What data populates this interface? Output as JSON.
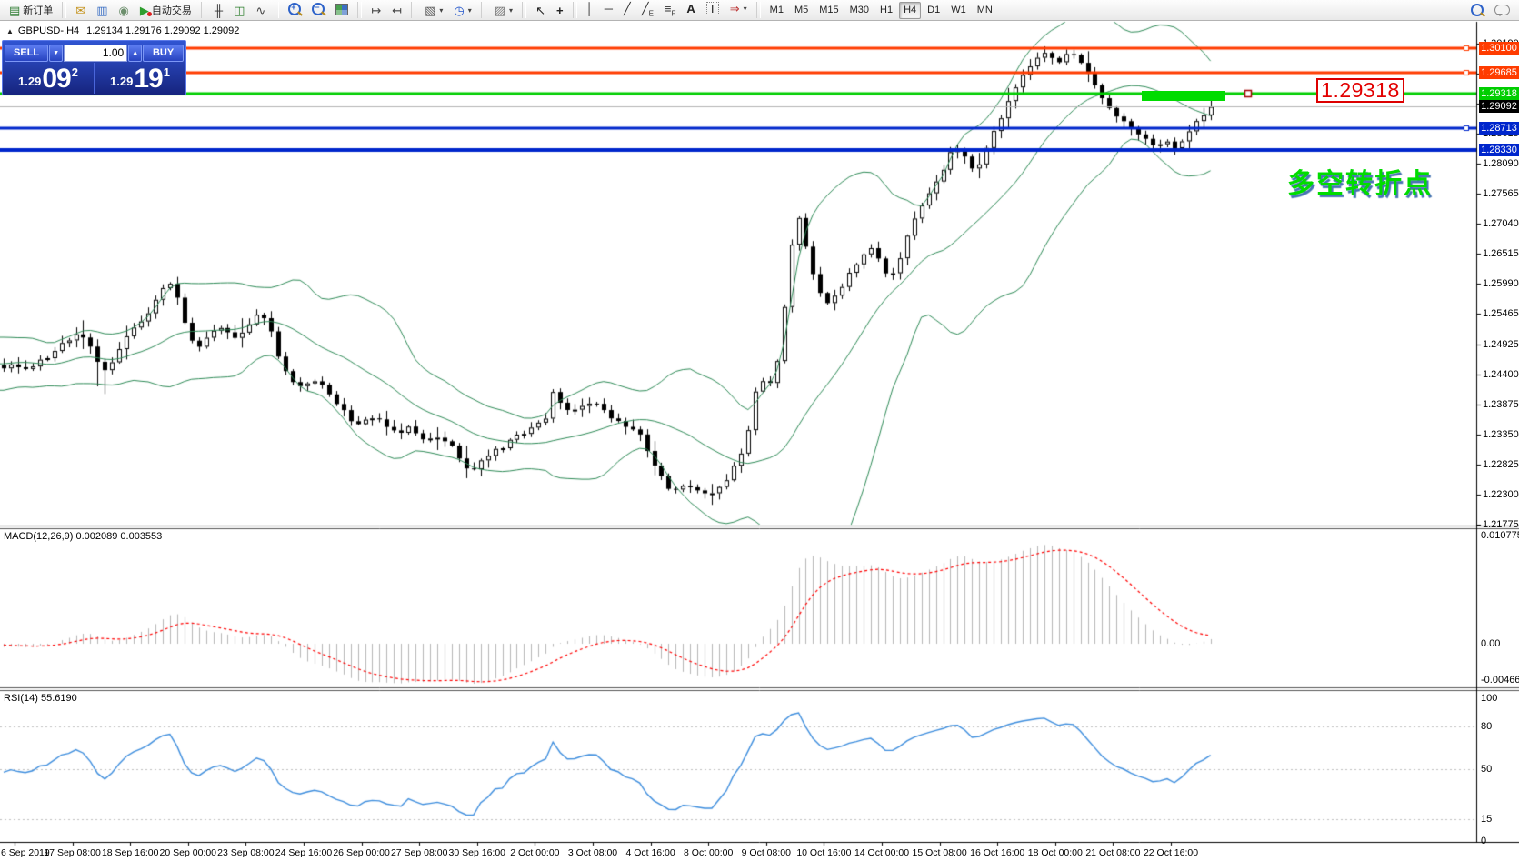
{
  "toolbar": {
    "groups": [
      {
        "name": "orders",
        "items": [
          {
            "icon": "new-order",
            "glyph": "▤",
            "label": "新订单"
          }
        ]
      },
      {
        "name": "services",
        "items": [
          {
            "icon": "envelope",
            "glyph": "✉"
          },
          {
            "icon": "terminal",
            "glyph": "▥"
          },
          {
            "icon": "signal",
            "glyph": "◉"
          },
          {
            "icon": "autotrading",
            "glyph": "▶",
            "label": "自动交易"
          }
        ]
      },
      {
        "name": "chart-type",
        "items": [
          {
            "icon": "bars",
            "glyph": "╫"
          },
          {
            "icon": "candles",
            "glyph": "◫"
          },
          {
            "icon": "line",
            "glyph": "∿"
          }
        ]
      },
      {
        "name": "zoom",
        "items": [
          {
            "icon": "zoom-in",
            "mag": "+"
          },
          {
            "icon": "zoom-out",
            "mag": "−"
          },
          {
            "icon": "tile-windows",
            "shape": true
          }
        ]
      },
      {
        "name": "scroll",
        "items": [
          {
            "icon": "auto-scroll",
            "glyph": "↦"
          },
          {
            "icon": "chart-shift",
            "glyph": "↤"
          }
        ]
      },
      {
        "name": "new-objects",
        "items": [
          {
            "icon": "new-chart",
            "glyph": "▧",
            "caret": true
          },
          {
            "icon": "periods",
            "glyph": "◷",
            "caret": true
          }
        ]
      },
      {
        "name": "templates",
        "items": [
          {
            "icon": "templates",
            "glyph": "▨",
            "caret": true
          }
        ]
      },
      {
        "name": "pointer",
        "items": [
          {
            "icon": "cursor",
            "glyph": "↖"
          },
          {
            "icon": "crosshair",
            "glyph": "+"
          }
        ]
      },
      {
        "name": "drawing",
        "items": [
          {
            "icon": "vline",
            "glyph": "│"
          },
          {
            "icon": "hline",
            "glyph": "─"
          },
          {
            "icon": "trendline",
            "glyph": "╱"
          },
          {
            "icon": "channel",
            "glyph": "╱",
            "sub": "E"
          },
          {
            "icon": "fibonacci",
            "glyph": "≡",
            "sub": "F"
          },
          {
            "icon": "text",
            "glyph": "A"
          },
          {
            "icon": "text-label",
            "glyph": "T"
          },
          {
            "icon": "arrows",
            "glyph": "⇒",
            "caret": true
          }
        ]
      },
      {
        "name": "timeframes",
        "items": [
          {
            "tf": "M1"
          },
          {
            "tf": "M5"
          },
          {
            "tf": "M15"
          },
          {
            "tf": "M30"
          },
          {
            "tf": "H1"
          },
          {
            "tf": "H4",
            "active": true
          },
          {
            "tf": "D1"
          },
          {
            "tf": "W1"
          },
          {
            "tf": "MN"
          }
        ]
      },
      {
        "name": "right",
        "align": "right",
        "items": [
          {
            "icon": "search",
            "mag": ""
          },
          {
            "icon": "chat",
            "chat": true
          }
        ]
      }
    ]
  },
  "chart_header": {
    "collapse": "▲",
    "symbol_period": "GBPUSD-,H4",
    "ohlc": "1.29134 1.29176 1.29092 1.29092"
  },
  "order_panel": {
    "sell_label": "SELL",
    "buy_label": "BUY",
    "volume": "1.00",
    "spin_down": "▼",
    "spin_up": "▲",
    "sell_price": {
      "prefix": "1.29",
      "big": "09",
      "sup": "2"
    },
    "buy_price": {
      "prefix": "1.29",
      "big": "19",
      "sup": "1"
    }
  },
  "annotations": {
    "price_box_label": "1.29318",
    "turning_point_text": "多空转折点",
    "accent_red": "#e20000",
    "accent_green": "#00dc00"
  },
  "chart_data": [
    {
      "type": "candlestick",
      "title": "GBPUSD-,H4",
      "ylim": [
        1.21775,
        1.30315
      ],
      "y_axis_ticks": [
        "1.30190",
        "1.29665",
        "1.29140",
        "1.28615",
        "1.28090",
        "1.27565",
        "1.27040",
        "1.26515",
        "1.25990",
        "1.25465",
        "1.24925",
        "1.24400",
        "1.23875",
        "1.23350",
        "1.22825",
        "1.22300",
        "1.21775"
      ],
      "x_axis_labels": [
        "6 Sep 2019",
        "17 Sep 08:00",
        "18 Sep 16:00",
        "20 Sep 00:00",
        "23 Sep 08:00",
        "24 Sep 16:00",
        "26 Sep 00:00",
        "27 Sep 08:00",
        "30 Sep 16:00",
        "2 Oct 00:00",
        "3 Oct 08:00",
        "4 Oct 16:00",
        "8 Oct 00:00",
        "9 Oct 08:00",
        "10 Oct 16:00",
        "14 Oct 00:00",
        "15 Oct 08:00",
        "16 Oct 16:00",
        "18 Oct 00:00",
        "21 Oct 08:00",
        "22 Oct 16:00"
      ],
      "levels": [
        {
          "price": 1.301,
          "label": "1.30100",
          "color": "#ff3c00",
          "width": 3,
          "handle": true
        },
        {
          "price": 1.29685,
          "label": "1.29685",
          "color": "#ff3c00",
          "width": 3,
          "handle": true
        },
        {
          "price": 1.29318,
          "label": "1.29318",
          "color": "#00ce00",
          "width": 3,
          "handle": false
        },
        {
          "price": 1.29092,
          "label": "1.29092",
          "color": "#b4b4b4",
          "width": 1,
          "badge": "#000000",
          "handle": false
        },
        {
          "price": 1.28713,
          "label": "1.28713",
          "color": "#0026cc",
          "width": 3,
          "handle": true
        },
        {
          "price": 1.2833,
          "label": "1.28330",
          "color": "#0026cc",
          "width": 4,
          "handle": false
        }
      ],
      "highlight_rect": {
        "price": 1.29318,
        "x_from": 1256,
        "x_to": 1348,
        "color": "#00dc00"
      },
      "bollinger_color": "#2e8b57",
      "bull_color": "#ffffff",
      "bear_color": "#000000",
      "wick_color": "#000000",
      "price_keypoints": [
        [
          0,
          1.245
        ],
        [
          12,
          1.2462
        ],
        [
          25,
          1.2445
        ],
        [
          38,
          1.2455
        ],
        [
          50,
          1.247
        ],
        [
          62,
          1.2488
        ],
        [
          74,
          1.25
        ],
        [
          86,
          1.2512
        ],
        [
          95,
          1.2495
        ],
        [
          105,
          1.2472
        ],
        [
          112,
          1.2448
        ],
        [
          120,
          1.2455
        ],
        [
          130,
          1.2478
        ],
        [
          140,
          1.2508
        ],
        [
          152,
          1.253
        ],
        [
          164,
          1.2552
        ],
        [
          175,
          1.258
        ],
        [
          186,
          1.2602
        ],
        [
          195,
          1.2575
        ],
        [
          205,
          1.2518
        ],
        [
          215,
          1.248
        ],
        [
          225,
          1.2505
        ],
        [
          235,
          1.252
        ],
        [
          248,
          1.2515
        ],
        [
          260,
          1.2505
        ],
        [
          272,
          1.2525
        ],
        [
          284,
          1.2545
        ],
        [
          295,
          1.253
        ],
        [
          306,
          1.247
        ],
        [
          318,
          1.2435
        ],
        [
          330,
          1.2418
        ],
        [
          342,
          1.2428
        ],
        [
          354,
          1.242
        ],
        [
          366,
          1.2398
        ],
        [
          378,
          1.238
        ],
        [
          390,
          1.2352
        ],
        [
          402,
          1.236
        ],
        [
          414,
          1.2372
        ],
        [
          426,
          1.235
        ],
        [
          438,
          1.234
        ],
        [
          450,
          1.2345
        ],
        [
          462,
          1.2332
        ],
        [
          474,
          1.2328
        ],
        [
          486,
          1.2325
        ],
        [
          498,
          1.2318
        ],
        [
          508,
          1.2282
        ],
        [
          518,
          1.2272
        ],
        [
          530,
          1.2292
        ],
        [
          542,
          1.2305
        ],
        [
          554,
          1.2312
        ],
        [
          566,
          1.233
        ],
        [
          578,
          1.2342
        ],
        [
          590,
          1.235
        ],
        [
          600,
          1.236
        ],
        [
          608,
          1.2408
        ],
        [
          618,
          1.2385
        ],
        [
          630,
          1.2372
        ],
        [
          642,
          1.2388
        ],
        [
          654,
          1.2395
        ],
        [
          666,
          1.2372
        ],
        [
          678,
          1.236
        ],
        [
          690,
          1.235
        ],
        [
          702,
          1.234
        ],
        [
          714,
          1.23
        ],
        [
          726,
          1.2262
        ],
        [
          738,
          1.2235
        ],
        [
          750,
          1.2242
        ],
        [
          762,
          1.2248
        ],
        [
          774,
          1.223
        ],
        [
          786,
          1.2238
        ],
        [
          798,
          1.2252
        ],
        [
          810,
          1.2285
        ],
        [
          820,
          1.231
        ],
        [
          828,
          1.2402
        ],
        [
          838,
          1.2432
        ],
        [
          848,
          1.242
        ],
        [
          858,
          1.2485
        ],
        [
          868,
          1.265
        ],
        [
          878,
          1.272
        ],
        [
          888,
          1.2655
        ],
        [
          898,
          1.26
        ],
        [
          908,
          1.2565
        ],
        [
          918,
          1.258
        ],
        [
          928,
          1.26
        ],
        [
          938,
          1.2622
        ],
        [
          948,
          1.265
        ],
        [
          958,
          1.2665
        ],
        [
          968,
          1.264
        ],
        [
          978,
          1.2605
        ],
        [
          988,
          1.263
        ],
        [
          998,
          1.268
        ],
        [
          1008,
          1.272
        ],
        [
          1018,
          1.2745
        ],
        [
          1028,
          1.2773
        ],
        [
          1038,
          1.28
        ],
        [
          1048,
          1.284
        ],
        [
          1058,
          1.2825
        ],
        [
          1068,
          1.28
        ],
        [
          1078,
          1.2812
        ],
        [
          1088,
          1.2845
        ],
        [
          1098,
          1.288
        ],
        [
          1108,
          1.2915
        ],
        [
          1118,
          1.2945
        ],
        [
          1128,
          1.2972
        ],
        [
          1140,
          1.2995
        ],
        [
          1152,
          1.3003
        ],
        [
          1164,
          1.2985
        ],
        [
          1176,
          1.3005
        ],
        [
          1188,
          1.2982
        ],
        [
          1200,
          1.2958
        ],
        [
          1212,
          1.2928
        ],
        [
          1224,
          1.2898
        ],
        [
          1236,
          1.2885
        ],
        [
          1248,
          1.2865
        ],
        [
          1260,
          1.2848
        ],
        [
          1272,
          1.284
        ],
        [
          1284,
          1.285
        ],
        [
          1294,
          1.2836
        ],
        [
          1304,
          1.2856
        ],
        [
          1314,
          1.288
        ],
        [
          1324,
          1.2896
        ],
        [
          1332,
          1.2909
        ]
      ]
    },
    {
      "type": "bar+line",
      "label": "MACD(12,26,9) 0.002089 0.003553",
      "current_values": [
        "0.002089",
        "0.003553"
      ],
      "y_axis_ticks": [
        "0.010775",
        "0.00",
        "-0.004668"
      ],
      "histogram_color": "#b6b6b6",
      "signal_color": "#ff0000"
    },
    {
      "type": "line",
      "label": "RSI(14) 55.6190",
      "current_value": "55.6190",
      "y_axis_ticks": [
        {
          "v": 100,
          "label": "100"
        },
        {
          "v": 80,
          "label": "80"
        },
        {
          "v": 50,
          "label": "50"
        },
        {
          "v": 15,
          "label": "15"
        },
        {
          "v": 0,
          "label": "0"
        }
      ],
      "grid_levels": [
        80,
        50,
        15
      ],
      "line_color": "#3e8ede"
    }
  ]
}
